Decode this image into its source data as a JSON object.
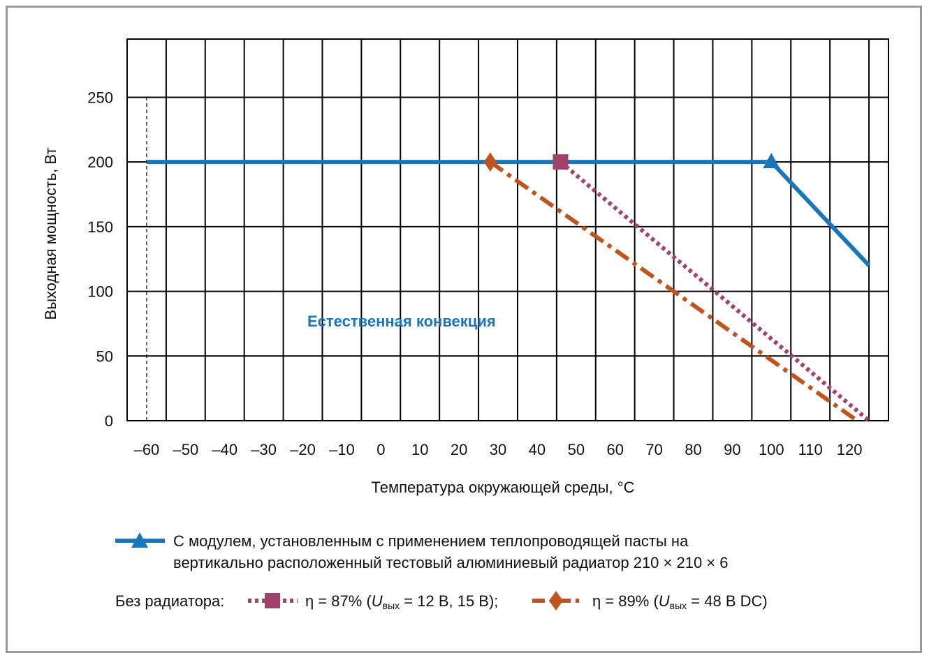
{
  "chart_data": {
    "type": "line",
    "ylabel": "Выходная мощность, Вт",
    "xlabel": "Температура окружающей среды, °C",
    "xlim": [
      -65,
      130
    ],
    "ylim": [
      0,
      295
    ],
    "x_ticks": [
      -60,
      -50,
      -40,
      -30,
      -20,
      -10,
      0,
      10,
      20,
      30,
      40,
      50,
      60,
      70,
      80,
      90,
      100,
      110,
      120
    ],
    "x_tick_labels": [
      "–60",
      "–50",
      "–40",
      "–30",
      "–20",
      "–10",
      "0",
      "10",
      "20",
      "30",
      "40",
      "50",
      "60",
      "70",
      "80",
      "90",
      "100",
      "110",
      "120"
    ],
    "y_ticks": [
      0,
      50,
      100,
      150,
      200,
      250
    ],
    "y_tick_labels": [
      "0",
      "50",
      "100",
      "150",
      "200",
      "250"
    ],
    "grid": true,
    "annotation": "Естественная конвекция",
    "series": [
      {
        "key": "radiator",
        "color": "#1b75bb",
        "style": "solid",
        "marker": "triangle",
        "marker_at": [
          [
            100,
            200
          ]
        ],
        "points": [
          [
            -60,
            200
          ],
          [
            100,
            200
          ],
          [
            125,
            120
          ]
        ]
      },
      {
        "key": "eta87",
        "color": "#a0436a",
        "style": "dotted",
        "marker": "square",
        "marker_at": [
          [
            46,
            200
          ]
        ],
        "points": [
          [
            46,
            200
          ],
          [
            125,
            0
          ]
        ]
      },
      {
        "key": "eta89",
        "color": "#c0541f",
        "style": "dash-dot",
        "marker": "diamond",
        "marker_at": [
          [
            28,
            200
          ]
        ],
        "points": [
          [
            28,
            200
          ],
          [
            122,
            0
          ]
        ]
      }
    ],
    "reference_lines": [
      {
        "x": -60,
        "y_from": 0,
        "y_to": 250
      },
      {
        "x": 125,
        "y_from": 0,
        "y_to": 120
      }
    ],
    "legend": {
      "radiator_line1": "С модулем, установленным с применением теплопроводящей пасты на",
      "radiator_line2": "вертикально расположенный тестовый алюминиевый радиатор 210 × 210 × 6",
      "no_radiator_label": "Без радиатора:",
      "eta87_pre": "η = 87% (",
      "eta87_U": "U",
      "eta87_sub": "вых",
      "eta87_post": " = 12 В, 15 В);",
      "eta89_pre": "η = 89% (",
      "eta89_U": "U",
      "eta89_sub": "вых",
      "eta89_post": " = 48 В DC)"
    }
  }
}
